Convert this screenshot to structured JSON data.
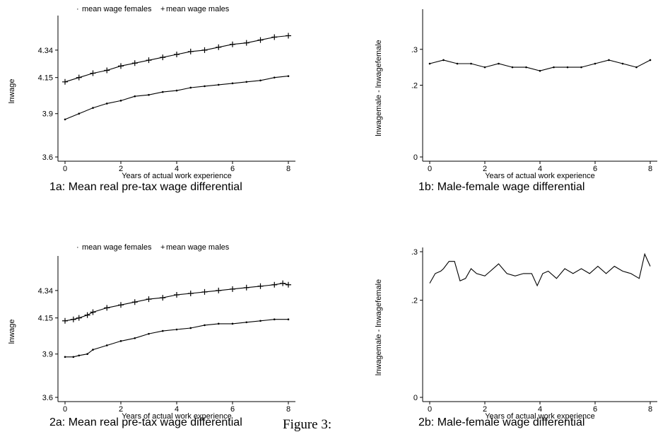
{
  "figure_label": "Figure 3:",
  "chart_data": [
    {
      "id": "1a",
      "type": "line",
      "caption": "1a: Mean real pre-tax wage differential",
      "xlabel": "Years of actual work experience",
      "ylabel": "lnwage",
      "xlim": [
        0,
        8
      ],
      "ylim": [
        3.6,
        4.55
      ],
      "xticks": [
        0,
        2,
        4,
        6,
        8
      ],
      "yticks": [
        3.6,
        3.9,
        4.15,
        4.34
      ],
      "legend": [
        {
          "symbol": "·",
          "name": "mean wage females"
        },
        {
          "symbol": "+",
          "name": "mean wage males"
        }
      ],
      "legend_position": "top",
      "series": [
        {
          "name": "mean wage females",
          "marker": "dot",
          "x": [
            0,
            0.5,
            1,
            1.5,
            2,
            2.5,
            3,
            3.5,
            4,
            4.5,
            5,
            5.5,
            6,
            6.5,
            7,
            7.5,
            8
          ],
          "y": [
            3.86,
            3.9,
            3.94,
            3.97,
            3.99,
            4.02,
            4.03,
            4.05,
            4.06,
            4.08,
            4.09,
            4.1,
            4.11,
            4.12,
            4.13,
            4.15,
            4.16
          ]
        },
        {
          "name": "mean wage males",
          "marker": "plus",
          "x": [
            0,
            0.5,
            1,
            1.5,
            2,
            2.5,
            3,
            3.5,
            4,
            4.5,
            5,
            5.5,
            6,
            6.5,
            7,
            7.5,
            8
          ],
          "y": [
            4.12,
            4.15,
            4.18,
            4.2,
            4.23,
            4.25,
            4.27,
            4.29,
            4.31,
            4.33,
            4.34,
            4.36,
            4.38,
            4.39,
            4.41,
            4.43,
            4.44
          ]
        }
      ]
    },
    {
      "id": "1b",
      "type": "line",
      "caption": "1b: Male-female wage differential",
      "xlabel": "Years of actual work experience",
      "ylabel": "lnwagemale - lnwagefemale",
      "xlim": [
        0,
        8
      ],
      "ylim": [
        0,
        0.4
      ],
      "xticks": [
        0,
        2,
        4,
        6,
        8
      ],
      "yticks": [
        0,
        0.2,
        0.3
      ],
      "ytick_labels": [
        "0",
        ".2",
        ".3"
      ],
      "series": [
        {
          "name": "",
          "marker": "dot",
          "x": [
            0,
            0.5,
            1,
            1.5,
            2,
            2.5,
            3,
            3.5,
            4,
            4.5,
            5,
            5.5,
            6,
            6.5,
            7,
            7.5,
            8
          ],
          "y": [
            0.26,
            0.27,
            0.26,
            0.26,
            0.25,
            0.26,
            0.25,
            0.25,
            0.24,
            0.25,
            0.25,
            0.25,
            0.26,
            0.27,
            0.26,
            0.25,
            0.27
          ]
        }
      ]
    },
    {
      "id": "2a",
      "type": "line",
      "caption": "2a: Mean real pre-tax wage differential",
      "xlabel": "Years of actual work experience",
      "ylabel": "lnwage",
      "xlim": [
        0,
        8
      ],
      "ylim": [
        3.6,
        4.55
      ],
      "xticks": [
        0,
        2,
        4,
        6,
        8
      ],
      "yticks": [
        3.6,
        3.9,
        4.15,
        4.34
      ],
      "legend": [
        {
          "symbol": "·",
          "name": "mean wage females"
        },
        {
          "symbol": "+",
          "name": "mean wage males"
        }
      ],
      "legend_position": "top",
      "series": [
        {
          "name": "mean wage females",
          "marker": "dot",
          "x": [
            0,
            0.3,
            0.5,
            0.8,
            1,
            1.5,
            2,
            2.5,
            3,
            3.5,
            4,
            4.5,
            5,
            5.5,
            6,
            6.5,
            7,
            7.5,
            8
          ],
          "y": [
            3.88,
            3.88,
            3.89,
            3.9,
            3.93,
            3.96,
            3.99,
            4.01,
            4.04,
            4.06,
            4.07,
            4.08,
            4.1,
            4.11,
            4.11,
            4.12,
            4.13,
            4.14,
            4.14
          ]
        },
        {
          "name": "mean wage males",
          "marker": "plus",
          "x": [
            0,
            0.3,
            0.5,
            0.8,
            1,
            1.5,
            2,
            2.5,
            3,
            3.5,
            4,
            4.5,
            5,
            5.5,
            6,
            6.5,
            7,
            7.5,
            7.8,
            8
          ],
          "y": [
            4.13,
            4.14,
            4.15,
            4.17,
            4.19,
            4.22,
            4.24,
            4.26,
            4.28,
            4.29,
            4.31,
            4.32,
            4.33,
            4.34,
            4.35,
            4.36,
            4.37,
            4.38,
            4.39,
            4.38
          ]
        }
      ]
    },
    {
      "id": "2b",
      "type": "line",
      "caption": "2b: Male-female wage differential",
      "xlabel": "Years of actual work experience",
      "ylabel": "lnwagemale - lnwagefemale",
      "xlim": [
        0,
        8
      ],
      "ylim": [
        0,
        0.3
      ],
      "xticks": [
        0,
        2,
        4,
        6,
        8
      ],
      "yticks": [
        0,
        0.2,
        0.3
      ],
      "ytick_labels": [
        "0",
        ".2",
        ".3"
      ],
      "series": [
        {
          "name": "",
          "marker": "none",
          "x": [
            0,
            0.2,
            0.4,
            0.5,
            0.7,
            0.9,
            1.1,
            1.3,
            1.5,
            1.7,
            2,
            2.2,
            2.5,
            2.8,
            3.1,
            3.4,
            3.7,
            3.9,
            4.1,
            4.3,
            4.6,
            4.9,
            5.2,
            5.5,
            5.8,
            6.1,
            6.4,
            6.7,
            7,
            7.3,
            7.6,
            7.8,
            8
          ],
          "y": [
            0.235,
            0.255,
            0.26,
            0.265,
            0.28,
            0.28,
            0.24,
            0.245,
            0.265,
            0.255,
            0.25,
            0.26,
            0.275,
            0.255,
            0.25,
            0.255,
            0.255,
            0.23,
            0.255,
            0.26,
            0.245,
            0.265,
            0.255,
            0.265,
            0.255,
            0.27,
            0.255,
            0.27,
            0.26,
            0.255,
            0.245,
            0.295,
            0.27
          ]
        }
      ]
    }
  ]
}
